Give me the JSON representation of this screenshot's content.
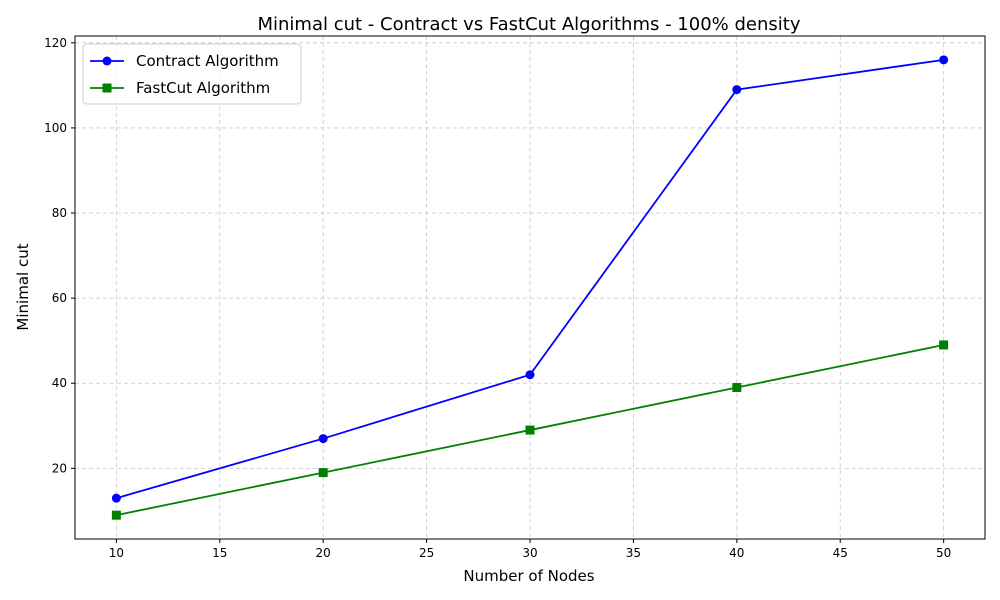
{
  "chart_data": {
    "type": "line",
    "title": "Minimal cut - Contract vs FastCut Algorithms -  100% density",
    "xlabel": "Number of Nodes",
    "ylabel": "Minimal cut",
    "x": [
      10,
      20,
      30,
      40,
      50
    ],
    "xlim": [
      8,
      52
    ],
    "ylim": [
      3.4,
      121.6
    ],
    "xticks": [
      10,
      15,
      20,
      25,
      30,
      35,
      40,
      45,
      50
    ],
    "yticks": [
      20,
      40,
      60,
      80,
      100,
      120
    ],
    "grid": true,
    "legend_position": "top-left",
    "series": [
      {
        "name": "Contract Algorithm",
        "values": [
          13,
          27,
          42,
          109,
          116
        ],
        "color": "#0000ff",
        "marker": "circle"
      },
      {
        "name": "FastCut Algorithm",
        "values": [
          9,
          19,
          29,
          39,
          49
        ],
        "color": "#008000",
        "marker": "square"
      }
    ]
  }
}
